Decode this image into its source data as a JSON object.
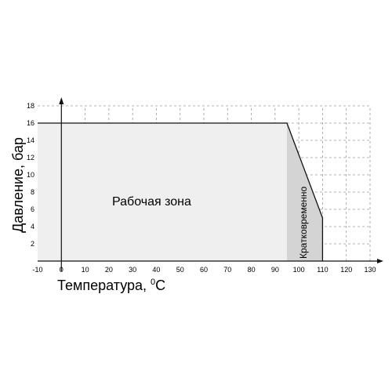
{
  "chart_data": {
    "type": "area",
    "xlabel": "Температура, ",
    "xlabel_unit": "0C",
    "xlabel_unit_sup": "0",
    "xlabel_unit_main": "C",
    "ylabel": "Давление, бар",
    "xlim": [
      -10,
      130
    ],
    "ylim": [
      0,
      18
    ],
    "x_ticks": [
      -10,
      0,
      10,
      20,
      30,
      40,
      50,
      60,
      70,
      80,
      90,
      100,
      110,
      120,
      130
    ],
    "y_ticks": [
      2,
      4,
      6,
      8,
      10,
      12,
      14,
      16,
      18
    ],
    "grid": true,
    "series": [
      {
        "name": "Рабочая зона",
        "x": [
          -10,
          0,
          95,
          110,
          110
        ],
        "y": [
          16,
          16,
          16,
          5,
          0
        ]
      }
    ],
    "regions": [
      {
        "label": "Рабочая зона",
        "x": [
          -10,
          95
        ]
      },
      {
        "label": "Кратковременно",
        "x": [
          95,
          110
        ]
      }
    ]
  }
}
